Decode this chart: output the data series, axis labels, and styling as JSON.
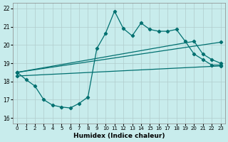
{
  "xlabel": "Humidex (Indice chaleur)",
  "bg_color": "#c8ecec",
  "grid_color": "#b0cccc",
  "line_color": "#007070",
  "xlim": [
    -0.5,
    23.5
  ],
  "ylim": [
    15.7,
    22.3
  ],
  "yticks": [
    16,
    17,
    18,
    19,
    20,
    21,
    22
  ],
  "xticks": [
    0,
    1,
    2,
    3,
    4,
    5,
    6,
    7,
    8,
    9,
    10,
    11,
    12,
    13,
    14,
    15,
    16,
    17,
    18,
    19,
    20,
    21,
    22,
    23
  ],
  "line1_x": [
    0,
    1,
    2,
    3,
    4,
    5,
    6,
    7,
    8,
    9,
    10,
    11,
    12,
    13,
    14,
    15,
    16,
    17,
    18,
    19,
    20,
    21,
    22,
    23
  ],
  "line1_y": [
    18.5,
    18.1,
    17.75,
    17.0,
    16.7,
    16.6,
    16.55,
    16.8,
    17.15,
    19.8,
    20.65,
    21.85,
    20.9,
    20.5,
    21.2,
    20.85,
    20.75,
    20.75,
    20.85,
    20.2,
    19.5,
    19.2,
    18.9,
    18.9
  ],
  "line2_x": [
    0,
    23
  ],
  "line2_y": [
    18.5,
    20.15
  ],
  "line3_x": [
    0,
    20,
    21,
    22,
    23
  ],
  "line3_y": [
    18.5,
    20.2,
    19.5,
    19.2,
    19.0
  ],
  "line4_x": [
    0,
    23
  ],
  "line4_y": [
    18.3,
    18.85
  ]
}
